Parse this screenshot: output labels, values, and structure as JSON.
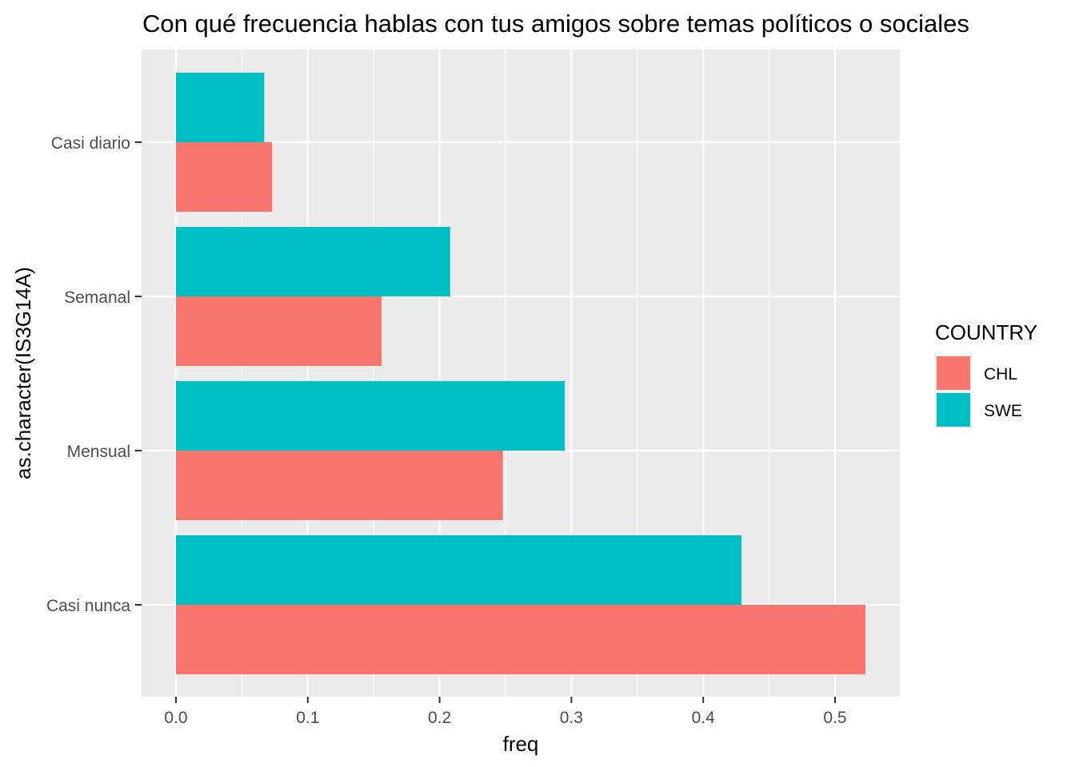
{
  "chart_data": {
    "type": "bar",
    "orientation": "horizontal",
    "title": "Con qué frecuencia hablas con tus amigos sobre temas políticos o sociales",
    "xlabel": "freq",
    "ylabel": "as.character(IS3G14A)",
    "categories": [
      "Casi diario",
      "Semanal",
      "Mensual",
      "Casi nunca"
    ],
    "series": [
      {
        "name": "CHL",
        "color": "#F8766D",
        "values": [
          0.073,
          0.156,
          0.248,
          0.523
        ]
      },
      {
        "name": "SWE",
        "color": "#00BFC4",
        "values": [
          0.067,
          0.208,
          0.295,
          0.429
        ]
      }
    ],
    "xlim": [
      0,
      0.535
    ],
    "xticks": [
      0.0,
      0.1,
      0.2,
      0.3,
      0.4,
      0.5
    ],
    "xtick_labels": [
      "0.0",
      "0.1",
      "0.2",
      "0.3",
      "0.4",
      "0.5"
    ],
    "legend": {
      "title": "COUNTRY",
      "position": "right"
    },
    "grid": true,
    "panel_background": "#EBEBEB"
  }
}
